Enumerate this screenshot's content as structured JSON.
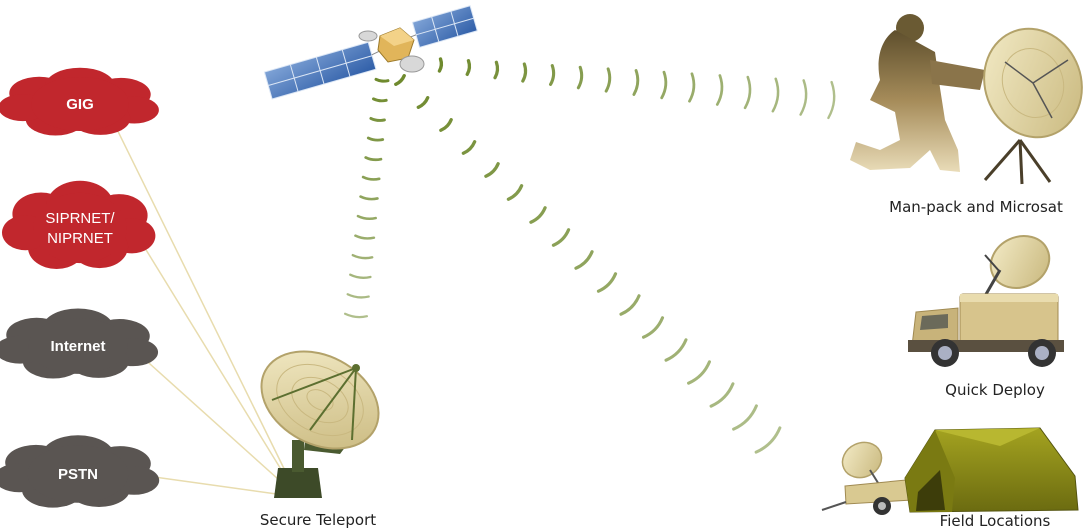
{
  "clouds": [
    {
      "id": "gig",
      "lines": [
        "GIG"
      ],
      "bold": true,
      "color": "#c1272d"
    },
    {
      "id": "siprnet",
      "lines": [
        "SIPRNET/",
        "NIPRNET"
      ],
      "bold": false,
      "color": "#c1272d"
    },
    {
      "id": "internet",
      "lines": [
        "Internet"
      ],
      "bold": true,
      "color": "#5a5552"
    },
    {
      "id": "pstn",
      "lines": [
        "PSTN"
      ],
      "bold": true,
      "color": "#5a5552"
    }
  ],
  "labels": {
    "teleport": "Secure Teleport",
    "manpack": "Man-pack and Microsat",
    "quick": "Quick Deploy",
    "field": "Field Locations"
  },
  "colors": {
    "line": "#e8dcae",
    "wave": "#6f8a2e",
    "dish": "#e6d9a3",
    "tan": "#c7b07c",
    "olive": "#8a8a18"
  },
  "icons": [
    "satellite-icon",
    "dish-antenna-icon",
    "soldier-icon",
    "truck-icon",
    "tent-icon",
    "trailer-icon"
  ]
}
